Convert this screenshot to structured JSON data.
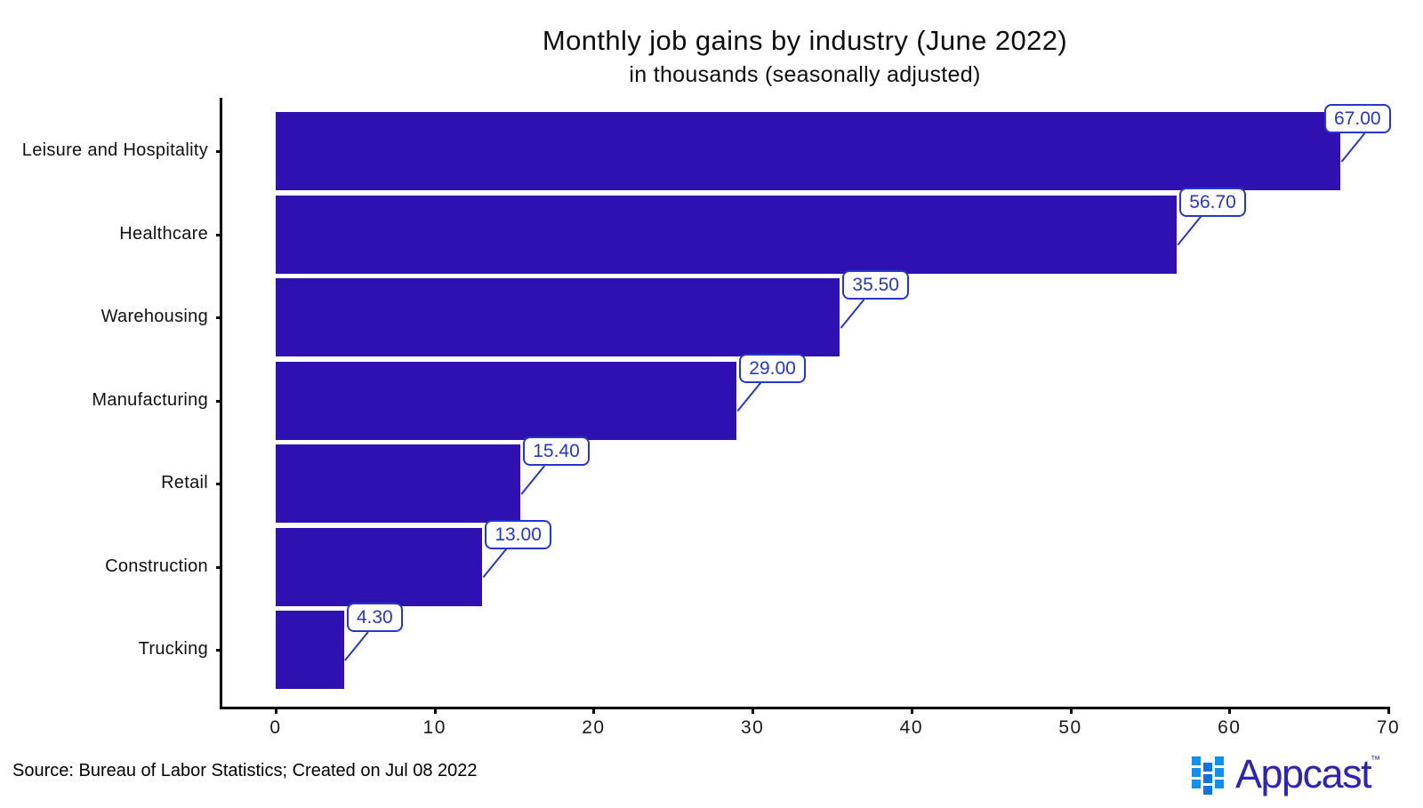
{
  "title": "Monthly job gains by industry (June 2022)",
  "subtitle": "in thousands (seasonally adjusted)",
  "source_note": "Source: Bureau of Labor Statistics; Created on Jul 08 2022",
  "logo": {
    "brand": "Appcast",
    "trademark": "™"
  },
  "colors": {
    "bar": "#2e11b0",
    "callout_blue": "#2437c9",
    "axis": "#000000",
    "logo_square_outer": "#0f90f2",
    "logo_square_mid": "#0b74e8",
    "logo_text": "#2c24b8"
  },
  "chart_data": {
    "type": "bar",
    "orientation": "horizontal",
    "title": "Monthly job gains by industry (June 2022)",
    "subtitle": "in thousands (seasonally adjusted)",
    "categories": [
      "Leisure and Hospitality",
      "Healthcare",
      "Warehousing",
      "Manufacturing",
      "Retail",
      "Construction",
      "Trucking"
    ],
    "values": [
      67.0,
      56.7,
      35.5,
      29.0,
      15.4,
      13.0,
      4.3
    ],
    "value_labels": [
      "67.00",
      "56.70",
      "35.50",
      "29.00",
      "15.40",
      "13.00",
      "4.30"
    ],
    "xlabel": "",
    "ylabel": "",
    "xlim": [
      0,
      70
    ],
    "x_ticks": [
      0,
      10,
      20,
      30,
      40,
      50,
      60,
      70
    ],
    "x_tick_labels": [
      "0",
      "10",
      "20",
      "30",
      "40",
      "50",
      "60",
      "70"
    ],
    "grid": false,
    "legend": false,
    "bar_color": "#2e11b0"
  }
}
